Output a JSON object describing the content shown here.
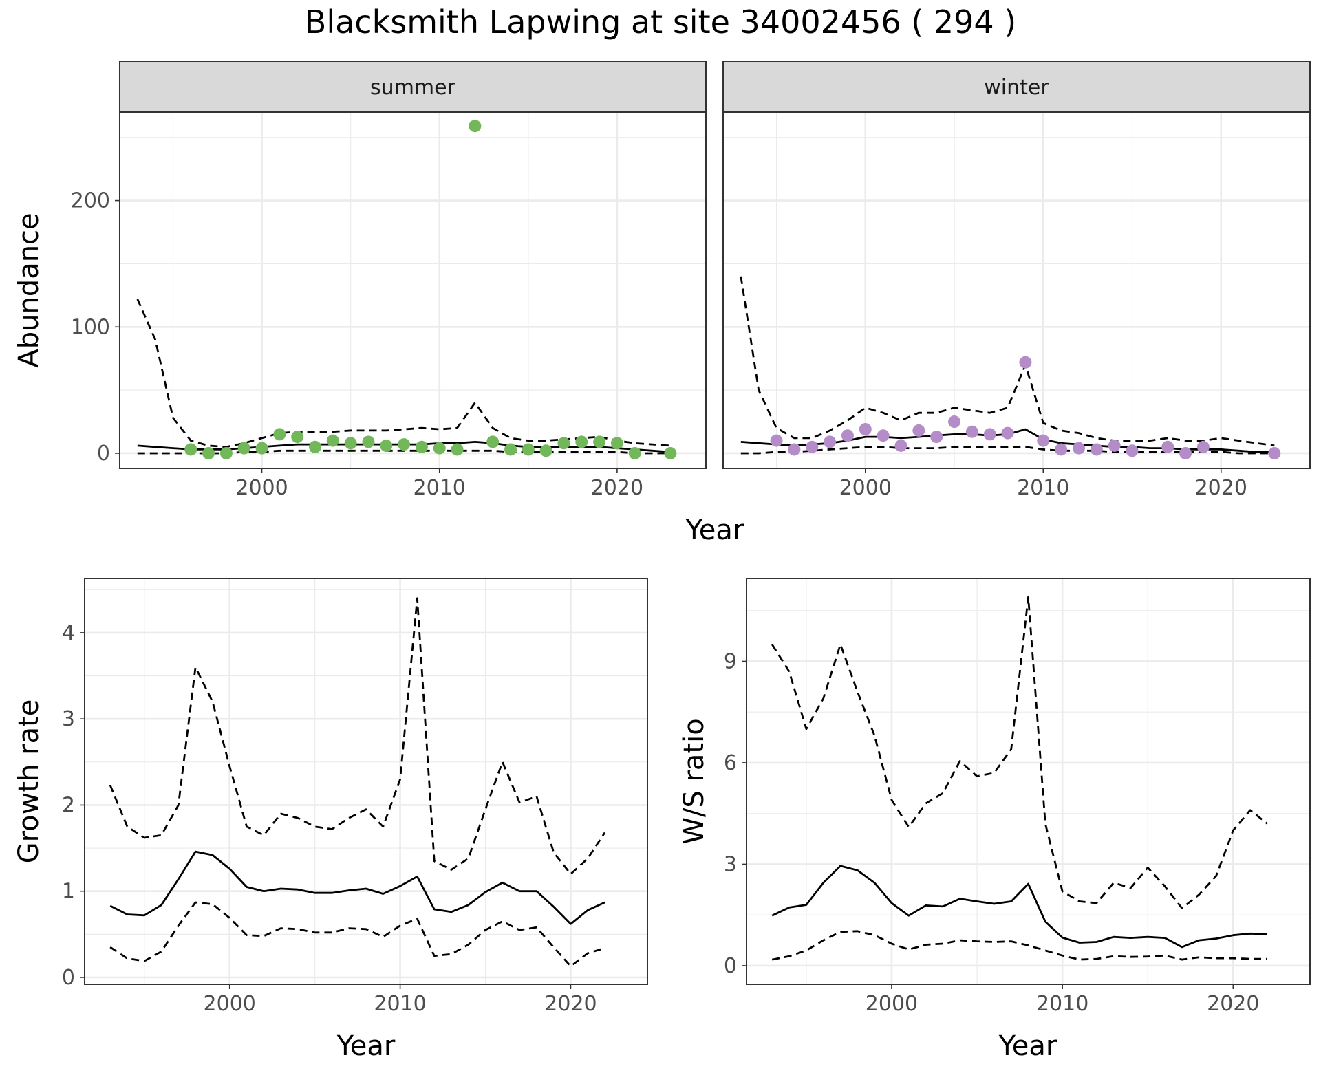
{
  "title": "Blacksmith Lapwing at site 34002456 ( 294 )",
  "colors": {
    "summer_points": "#72b85a",
    "winter_points": "#b48cc8",
    "lines": "#000000",
    "grid": "#ebebeb",
    "strip_fill": "#d9d9d9",
    "panel_border": "#333333"
  },
  "chart_data": [
    {
      "type": "line",
      "name": "abundance",
      "xlabel": "Year",
      "ylabel": "Abundance",
      "xlim": [
        1992,
        2025
      ],
      "ylim": [
        -12,
        270
      ],
      "xticks": [
        2000,
        2010,
        2020
      ],
      "yticks": [
        0,
        100,
        200
      ],
      "grid": true,
      "facets": [
        {
          "label": "summer",
          "point_color": "#72b85a",
          "points": {
            "x": [
              1996,
              1997,
              1998,
              1999,
              2000,
              2001,
              2002,
              2003,
              2004,
              2005,
              2006,
              2007,
              2008,
              2009,
              2010,
              2011,
              2012,
              2013,
              2014,
              2015,
              2016,
              2017,
              2018,
              2019,
              2020,
              2021,
              2023
            ],
            "y": [
              3,
              0,
              0,
              4,
              4,
              15,
              13,
              5,
              10,
              8,
              9,
              6,
              7,
              5,
              4,
              3,
              259,
              9,
              3,
              3,
              2,
              8,
              9,
              9,
              8,
              0,
              0
            ]
          },
          "x": [
            1993,
            1994,
            1995,
            1996,
            1997,
            1998,
            1999,
            2000,
            2001,
            2002,
            2003,
            2004,
            2005,
            2006,
            2007,
            2008,
            2009,
            2010,
            2011,
            2012,
            2013,
            2014,
            2015,
            2016,
            2017,
            2018,
            2019,
            2020,
            2021,
            2022,
            2023
          ],
          "series": [
            {
              "style": "solid",
              "values": [
                6,
                5,
                4,
                3,
                3,
                3,
                4,
                5,
                6,
                7,
                7,
                7,
                7,
                7,
                7,
                7,
                7,
                8,
                8,
                9,
                8,
                6,
                5,
                5,
                5,
                5,
                5,
                4,
                3,
                2,
                1
              ]
            },
            {
              "style": "dashed",
              "values": [
                122,
                90,
                28,
                10,
                6,
                5,
                8,
                12,
                16,
                17,
                17,
                17,
                18,
                18,
                18,
                19,
                20,
                19,
                20,
                40,
                20,
                12,
                10,
                10,
                11,
                12,
                13,
                10,
                8,
                7,
                6
              ]
            },
            {
              "style": "dashed",
              "values": [
                0,
                0,
                0,
                0,
                0,
                0,
                1,
                1,
                2,
                2,
                2,
                2,
                2,
                2,
                2,
                2,
                2,
                2,
                2,
                2,
                2,
                1,
                1,
                1,
                1,
                1,
                1,
                1,
                0,
                0,
                0
              ]
            }
          ]
        },
        {
          "label": "winter",
          "point_color": "#b48cc8",
          "points": {
            "x": [
              1995,
              1996,
              1997,
              1998,
              1999,
              2000,
              2001,
              2002,
              2003,
              2004,
              2005,
              2006,
              2007,
              2008,
              2009,
              2010,
              2011,
              2012,
              2013,
              2014,
              2015,
              2017,
              2018,
              2019,
              2023
            ],
            "y": [
              10,
              3,
              5,
              9,
              14,
              19,
              14,
              6,
              18,
              13,
              25,
              17,
              15,
              16,
              72,
              10,
              3,
              4,
              3,
              6,
              2,
              5,
              0,
              5,
              0
            ]
          },
          "x": [
            1993,
            1994,
            1995,
            1996,
            1997,
            1998,
            1999,
            2000,
            2001,
            2002,
            2003,
            2004,
            2005,
            2006,
            2007,
            2008,
            2009,
            2010,
            2011,
            2012,
            2013,
            2014,
            2015,
            2016,
            2017,
            2018,
            2019,
            2020,
            2021,
            2022,
            2023
          ],
          "series": [
            {
              "style": "solid",
              "values": [
                9,
                8,
                7,
                6,
                7,
                8,
                10,
                13,
                13,
                12,
                13,
                14,
                15,
                15,
                14,
                15,
                19,
                11,
                8,
                7,
                6,
                5,
                5,
                4,
                4,
                3,
                3,
                3,
                2,
                1,
                1
              ]
            },
            {
              "style": "dashed",
              "values": [
                140,
                50,
                20,
                12,
                12,
                18,
                26,
                36,
                32,
                26,
                32,
                32,
                36,
                34,
                32,
                36,
                70,
                24,
                18,
                16,
                12,
                10,
                10,
                10,
                12,
                10,
                10,
                12,
                10,
                8,
                6
              ]
            },
            {
              "style": "dashed",
              "values": [
                0,
                0,
                1,
                1,
                2,
                3,
                4,
                5,
                5,
                4,
                4,
                4,
                5,
                5,
                5,
                5,
                5,
                3,
                2,
                2,
                2,
                1,
                1,
                1,
                1,
                1,
                1,
                1,
                0,
                0,
                0
              ]
            }
          ]
        }
      ]
    },
    {
      "type": "line",
      "name": "growth_rate",
      "xlabel": "Year",
      "ylabel": "Growth rate",
      "xlim": [
        1991.5,
        2024.5
      ],
      "ylim": [
        -0.08,
        4.63
      ],
      "xticks": [
        2000,
        2010,
        2020
      ],
      "yticks": [
        0,
        1,
        2,
        3,
        4
      ],
      "grid": true,
      "x": [
        1993,
        1994,
        1995,
        1996,
        1997,
        1998,
        1999,
        2000,
        2001,
        2002,
        2003,
        2004,
        2005,
        2006,
        2007,
        2008,
        2009,
        2010,
        2011,
        2012,
        2013,
        2014,
        2015,
        2016,
        2017,
        2018,
        2019,
        2020,
        2021,
        2022
      ],
      "series": [
        {
          "style": "solid",
          "values": [
            0.83,
            0.73,
            0.72,
            0.84,
            1.14,
            1.46,
            1.42,
            1.26,
            1.05,
            1.0,
            1.03,
            1.02,
            0.98,
            0.98,
            1.01,
            1.03,
            0.97,
            1.06,
            1.17,
            0.79,
            0.76,
            0.84,
            0.99,
            1.1,
            1.0,
            1.0,
            0.82,
            0.62,
            0.78,
            0.87
          ]
        },
        {
          "style": "dashed",
          "values": [
            2.23,
            1.75,
            1.62,
            1.65,
            2.0,
            3.6,
            3.2,
            2.45,
            1.75,
            1.65,
            1.9,
            1.85,
            1.75,
            1.72,
            1.85,
            1.95,
            1.75,
            2.3,
            4.4,
            1.35,
            1.25,
            1.38,
            1.95,
            2.5,
            2.03,
            2.1,
            1.45,
            1.2,
            1.38,
            1.68
          ]
        },
        {
          "style": "dashed",
          "values": [
            0.35,
            0.22,
            0.19,
            0.3,
            0.6,
            0.87,
            0.85,
            0.69,
            0.49,
            0.48,
            0.57,
            0.56,
            0.52,
            0.52,
            0.57,
            0.56,
            0.47,
            0.6,
            0.68,
            0.25,
            0.27,
            0.38,
            0.55,
            0.65,
            0.55,
            0.58,
            0.35,
            0.13,
            0.28,
            0.34
          ]
        }
      ]
    },
    {
      "type": "line",
      "name": "ws_ratio",
      "xlabel": "Year",
      "ylabel": "W/S ratio",
      "xlim": [
        1991.5,
        2024.5
      ],
      "ylim": [
        -0.55,
        11.45
      ],
      "xticks": [
        2000,
        2010,
        2020
      ],
      "yticks": [
        0,
        3,
        6,
        9
      ],
      "grid": true,
      "x": [
        1993,
        1994,
        1995,
        1996,
        1997,
        1998,
        1999,
        2000,
        2001,
        2002,
        2003,
        2004,
        2005,
        2006,
        2007,
        2008,
        2009,
        2010,
        2011,
        2012,
        2013,
        2014,
        2015,
        2016,
        2017,
        2018,
        2019,
        2020,
        2021,
        2022
      ],
      "series": [
        {
          "style": "solid",
          "values": [
            1.48,
            1.72,
            1.8,
            2.45,
            2.95,
            2.82,
            2.45,
            1.85,
            1.48,
            1.78,
            1.75,
            1.98,
            1.9,
            1.83,
            1.9,
            2.42,
            1.3,
            0.83,
            0.68,
            0.7,
            0.85,
            0.82,
            0.85,
            0.82,
            0.55,
            0.75,
            0.8,
            0.9,
            0.95,
            0.93
          ]
        },
        {
          "style": "dashed",
          "values": [
            9.5,
            8.7,
            7.0,
            7.9,
            9.5,
            8.1,
            6.8,
            4.9,
            4.1,
            4.8,
            5.1,
            6.05,
            5.6,
            5.7,
            6.4,
            10.9,
            4.2,
            2.2,
            1.9,
            1.85,
            2.45,
            2.3,
            2.9,
            2.35,
            1.7,
            2.1,
            2.65,
            4.0,
            4.6,
            4.2
          ]
        },
        {
          "style": "dashed",
          "values": [
            0.18,
            0.28,
            0.45,
            0.75,
            1.0,
            1.02,
            0.9,
            0.65,
            0.48,
            0.62,
            0.65,
            0.75,
            0.72,
            0.7,
            0.72,
            0.6,
            0.45,
            0.3,
            0.18,
            0.2,
            0.28,
            0.26,
            0.27,
            0.3,
            0.18,
            0.25,
            0.22,
            0.22,
            0.2,
            0.2
          ]
        }
      ]
    }
  ]
}
